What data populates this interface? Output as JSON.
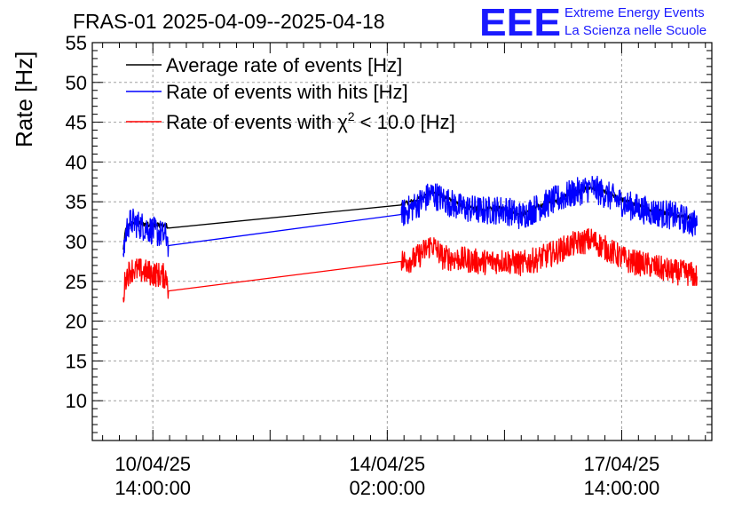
{
  "header": {
    "title": "FRAS-01 2025-04-09--2025-04-18",
    "logo_text": "EEE",
    "logo_line1": "Extreme Energy Events",
    "logo_line2": "La Scienza nelle Scuole"
  },
  "colors": {
    "average": "#000000",
    "hits": "#0000ff",
    "chi2": "#ff0000",
    "logo": "#1a1aff",
    "grid": "#a0a0a0"
  },
  "chart_data": {
    "type": "line",
    "title": "FRAS-01 2025-04-09--2025-04-18",
    "xlabel": "",
    "ylabel": "Rate [Hz]",
    "grid": true,
    "legend_position": "top-left",
    "xlim_hours": [
      -21.7,
      200.3
    ],
    "ylim": [
      5,
      55
    ],
    "y_ticks": [
      10,
      15,
      20,
      25,
      30,
      35,
      40,
      45,
      50,
      55
    ],
    "x_ticks": [
      {
        "hours": 0,
        "date": "10/04/25",
        "time": "14:00:00"
      },
      {
        "hours": 84,
        "date": "14/04/25",
        "time": "02:00:00"
      },
      {
        "hours": 168,
        "date": "17/04/25",
        "time": "14:00:00"
      }
    ],
    "series": [
      {
        "name": "Average rate of events [Hz]",
        "legend": {
          "prefix": "Average rate of events [Hz]",
          "sup": "",
          "suffix": ""
        },
        "color": "#000000",
        "noise": 0.3,
        "points": [
          [
            -10.6,
            29.0
          ],
          [
            -9.8,
            31.5
          ],
          [
            -8.8,
            32.1
          ],
          [
            -7.0,
            32.3
          ],
          [
            5.0,
            32.0
          ],
          [
            5.6,
            31.7
          ],
          [
            89.0,
            34.6
          ],
          [
            94.0,
            35.2
          ],
          [
            100.0,
            36.2
          ],
          [
            104.0,
            35.6
          ],
          [
            110.0,
            34.6
          ],
          [
            118.0,
            34.0
          ],
          [
            126.0,
            34.2
          ],
          [
            132.0,
            33.4
          ],
          [
            138.0,
            34.4
          ],
          [
            144.0,
            35.0
          ],
          [
            150.0,
            36.0
          ],
          [
            157.0,
            36.8
          ],
          [
            163.0,
            36.1
          ],
          [
            170.0,
            35.0
          ],
          [
            178.0,
            34.0
          ],
          [
            186.0,
            33.5
          ],
          [
            192.0,
            33.0
          ],
          [
            195.0,
            32.6
          ]
        ]
      },
      {
        "name": "Rate of events with hits [Hz]",
        "legend": {
          "prefix": "Rate of events with hits [Hz]",
          "sup": "",
          "suffix": ""
        },
        "color": "#0000ff",
        "noise": 1.8,
        "points": [
          [
            -10.6,
            28.5
          ],
          [
            -9.8,
            30.8
          ],
          [
            -8.8,
            32.2
          ],
          [
            -7.5,
            32.5
          ],
          [
            5.0,
            30.6
          ],
          [
            5.6,
            29.5
          ],
          [
            89.0,
            33.4
          ],
          [
            94.0,
            34.5
          ],
          [
            100.0,
            36.0
          ],
          [
            104.0,
            35.3
          ],
          [
            110.0,
            34.3
          ],
          [
            118.0,
            33.9
          ],
          [
            126.0,
            34.0
          ],
          [
            132.0,
            33.2
          ],
          [
            138.0,
            34.3
          ],
          [
            144.0,
            35.2
          ],
          [
            150.0,
            36.0
          ],
          [
            157.0,
            36.8
          ],
          [
            163.0,
            35.8
          ],
          [
            170.0,
            34.6
          ],
          [
            178.0,
            33.8
          ],
          [
            186.0,
            33.3
          ],
          [
            192.0,
            32.6
          ],
          [
            195.0,
            32.0
          ]
        ]
      },
      {
        "name": "Rate of events with χ2 < 10.0 [Hz]",
        "legend": {
          "prefix": "Rate of events with χ",
          "sup": "2",
          "suffix": " < 10.0 [Hz]"
        },
        "color": "#ff0000",
        "noise": 1.6,
        "points": [
          [
            -10.6,
            23.0
          ],
          [
            -9.8,
            25.5
          ],
          [
            -8.0,
            26.4
          ],
          [
            -7.0,
            26.5
          ],
          [
            5.0,
            25.6
          ],
          [
            5.6,
            23.8
          ],
          [
            89.0,
            27.5
          ],
          [
            94.0,
            27.8
          ],
          [
            100.0,
            29.7
          ],
          [
            104.0,
            28.0
          ],
          [
            110.0,
            27.8
          ],
          [
            118.0,
            27.4
          ],
          [
            126.0,
            27.6
          ],
          [
            132.0,
            27.2
          ],
          [
            138.0,
            27.8
          ],
          [
            144.0,
            28.6
          ],
          [
            150.0,
            29.6
          ],
          [
            157.0,
            30.2
          ],
          [
            163.0,
            29.0
          ],
          [
            170.0,
            27.6
          ],
          [
            178.0,
            27.0
          ],
          [
            186.0,
            26.2
          ],
          [
            192.0,
            26.0
          ],
          [
            195.0,
            25.6
          ]
        ]
      }
    ]
  }
}
